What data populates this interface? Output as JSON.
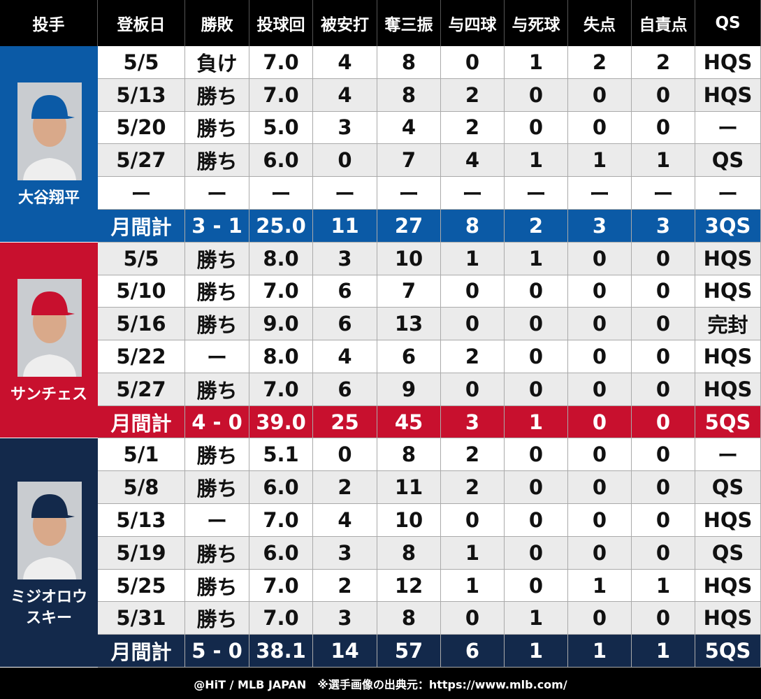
{
  "header": {
    "columns": [
      "投手",
      "登板日",
      "勝敗",
      "投球回",
      "被安打",
      "奪三振",
      "与四球",
      "与死球",
      "失点",
      "自責点",
      "QS"
    ]
  },
  "pitchers": [
    {
      "name_lines": [
        "大谷翔平"
      ],
      "color": "#0b5aa6",
      "rows": [
        [
          "5/5",
          "負け",
          "7.0",
          "4",
          "8",
          "0",
          "1",
          "2",
          "2",
          "HQS"
        ],
        [
          "5/13",
          "勝ち",
          "7.0",
          "4",
          "8",
          "2",
          "0",
          "0",
          "0",
          "HQS"
        ],
        [
          "5/20",
          "勝ち",
          "5.0",
          "3",
          "4",
          "2",
          "0",
          "0",
          "0",
          "ー"
        ],
        [
          "5/27",
          "勝ち",
          "6.0",
          "0",
          "7",
          "4",
          "1",
          "1",
          "1",
          "QS"
        ],
        [
          "ー",
          "ー",
          "ー",
          "ー",
          "ー",
          "ー",
          "ー",
          "ー",
          "ー",
          "ー"
        ]
      ],
      "total": [
        "月間計",
        "3 - 1",
        "25.0",
        "11",
        "27",
        "8",
        "2",
        "3",
        "3",
        "3QS"
      ]
    },
    {
      "name_lines": [
        "サンチェス"
      ],
      "color": "#c8102e",
      "rows": [
        [
          "5/5",
          "勝ち",
          "8.0",
          "3",
          "10",
          "1",
          "1",
          "0",
          "0",
          "HQS"
        ],
        [
          "5/10",
          "勝ち",
          "7.0",
          "6",
          "7",
          "0",
          "0",
          "0",
          "0",
          "HQS"
        ],
        [
          "5/16",
          "勝ち",
          "9.0",
          "6",
          "13",
          "0",
          "0",
          "0",
          "0",
          "完封"
        ],
        [
          "5/22",
          "ー",
          "8.0",
          "4",
          "6",
          "2",
          "0",
          "0",
          "0",
          "HQS"
        ],
        [
          "5/27",
          "勝ち",
          "7.0",
          "6",
          "9",
          "0",
          "0",
          "0",
          "0",
          "HQS"
        ]
      ],
      "total": [
        "月間計",
        "4 - 0",
        "39.0",
        "25",
        "45",
        "3",
        "1",
        "0",
        "0",
        "5QS"
      ]
    },
    {
      "name_lines": [
        "ミジオロウ",
        "スキー"
      ],
      "color": "#13294b",
      "rows": [
        [
          "5/1",
          "勝ち",
          "5.1",
          "0",
          "8",
          "2",
          "0",
          "0",
          "0",
          "ー"
        ],
        [
          "5/8",
          "勝ち",
          "6.0",
          "2",
          "11",
          "2",
          "0",
          "0",
          "0",
          "QS"
        ],
        [
          "5/13",
          "ー",
          "7.0",
          "4",
          "10",
          "0",
          "0",
          "0",
          "0",
          "HQS"
        ],
        [
          "5/19",
          "勝ち",
          "6.0",
          "3",
          "8",
          "1",
          "0",
          "0",
          "0",
          "QS"
        ],
        [
          "5/25",
          "勝ち",
          "7.0",
          "2",
          "12",
          "1",
          "0",
          "1",
          "1",
          "HQS"
        ],
        [
          "5/31",
          "勝ち",
          "7.0",
          "3",
          "8",
          "0",
          "1",
          "0",
          "0",
          "HQS"
        ]
      ],
      "total": [
        "月間計",
        "5 - 0",
        "38.1",
        "14",
        "57",
        "6",
        "1",
        "1",
        "1",
        "5QS"
      ]
    }
  ],
  "footer": {
    "credit": "@HiT / MLB JAPAN　※選手画像の出典元：https://www.mlb.com/"
  }
}
